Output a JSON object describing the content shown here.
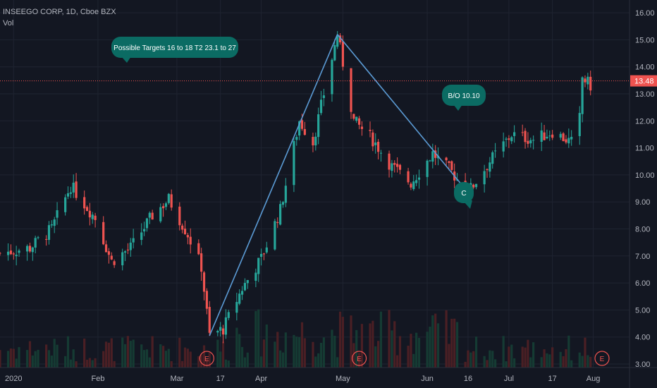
{
  "header": {
    "symbol_line": "INSEEGO CORP, 1D, Cboe BZX",
    "volume_label": "Vol"
  },
  "colors": {
    "background": "#131722",
    "grid": "#1f2431",
    "up": "#26a69a",
    "down": "#ef5350",
    "up_volume": "#153b33",
    "down_volume": "#4a1f24",
    "trendline": "#5b9bd5",
    "price_line": "#ef5350",
    "callout": "#0b6b63",
    "axis_text": "#b2b5be"
  },
  "chart_data": {
    "type": "candlestick",
    "y_axis": {
      "ticks": [
        "16.00",
        "15.00",
        "14.00",
        "13.00",
        "12.00",
        "11.00",
        "10.00",
        "9.00",
        "8.00",
        "7.00",
        "6.00",
        "5.00",
        "4.00",
        "3.00"
      ],
      "range": [
        2.85,
        16.4
      ]
    },
    "x_axis": {
      "ticks": [
        "2020",
        "Feb",
        "Mar",
        "17",
        "Apr",
        "May",
        "Jun",
        "16",
        "Jul",
        "17",
        "Aug"
      ]
    },
    "last_price": "13.48",
    "last_price_value": 13.48,
    "earnings_marker": "E",
    "annotations": {
      "targets": "Possible Targets  16 to 18  T2   23.1 to  27",
      "breakout": "B/O  10.10",
      "point_c": "C"
    },
    "trendline": [
      {
        "date": "2020-03-13",
        "price": 4.05
      },
      {
        "date": "2020-04-29",
        "price": 15.2
      },
      {
        "date": "2020-06-16",
        "price": 9.35
      }
    ],
    "price_path": [
      [
        "2019-12-27",
        7.1
      ],
      [
        "2020-01-07",
        7.3
      ],
      [
        "2020-01-15",
        8.0
      ],
      [
        "2020-01-22",
        9.6
      ],
      [
        "2020-01-31",
        8.4
      ],
      [
        "2020-02-06",
        6.8
      ],
      [
        "2020-02-13",
        7.3
      ],
      [
        "2020-02-21",
        8.5
      ],
      [
        "2020-02-27",
        9.1
      ],
      [
        "2020-03-05",
        7.8
      ],
      [
        "2020-03-10",
        6.6
      ],
      [
        "2020-03-13",
        4.05
      ],
      [
        "2020-03-18",
        4.3
      ],
      [
        "2020-03-25",
        5.8
      ],
      [
        "2020-04-01",
        6.9
      ],
      [
        "2020-04-08",
        8.7
      ],
      [
        "2020-04-15",
        12.0
      ],
      [
        "2020-04-20",
        11.2
      ],
      [
        "2020-04-24",
        13.0
      ],
      [
        "2020-04-29",
        15.2
      ],
      [
        "2020-05-05",
        12.0
      ],
      [
        "2020-05-12",
        11.3
      ],
      [
        "2020-05-19",
        10.3
      ],
      [
        "2020-05-26",
        9.7
      ],
      [
        "2020-06-03",
        10.8
      ],
      [
        "2020-06-10",
        10.1
      ],
      [
        "2020-06-16",
        9.35
      ],
      [
        "2020-06-24",
        10.5
      ],
      [
        "2020-07-02",
        11.5
      ],
      [
        "2020-07-10",
        11.3
      ],
      [
        "2020-07-17",
        11.6
      ],
      [
        "2020-07-24",
        11.2
      ],
      [
        "2020-07-27",
        12.1
      ],
      [
        "2020-07-28",
        13.6
      ],
      [
        "2020-07-31",
        13.3
      ]
    ]
  }
}
